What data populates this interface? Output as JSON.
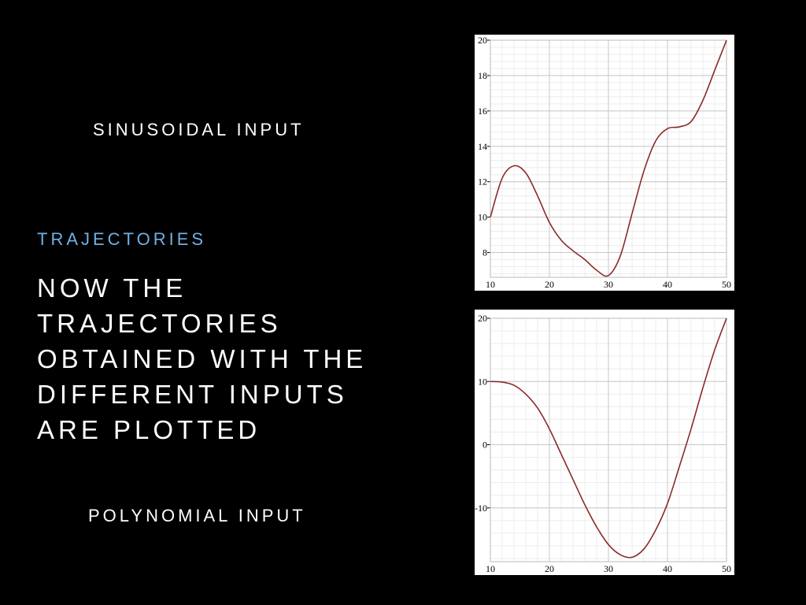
{
  "labels": {
    "sinusoidal": "SINUSOIDAL INPUT",
    "polynomial": "POLYNOMIAL INPUT"
  },
  "section": "TRAJECTORIES",
  "headline": [
    "NOW THE",
    "TRAJECTORIES",
    "OBTAINED WITH THE",
    "DIFFERENT INPUTS",
    "ARE PLOTTED"
  ],
  "colors": {
    "background": "#000000",
    "accent": "#6fb0e6",
    "curve": "#8b2a2a",
    "grid": "#cccccc"
  },
  "chart_data": [
    {
      "type": "line",
      "xlim": [
        10,
        50
      ],
      "ylim": [
        6.6,
        20
      ],
      "xticks": [
        10,
        20,
        30,
        40,
        50
      ],
      "yticks": [
        8,
        10,
        12,
        14,
        16,
        18,
        20
      ],
      "grid": true,
      "series": [
        {
          "x": [
            10,
            12,
            14,
            16,
            18,
            20,
            22,
            24,
            26,
            28,
            30,
            32,
            34,
            36,
            38,
            40,
            42,
            44,
            46,
            48,
            50
          ],
          "y": [
            10,
            12.2,
            12.9,
            12.5,
            11.2,
            9.7,
            8.7,
            8.1,
            7.6,
            7,
            6.7,
            7.8,
            10.2,
            12.6,
            14.3,
            15,
            15.1,
            15.4,
            16.6,
            18.3,
            20
          ]
        }
      ]
    },
    {
      "type": "line",
      "xlim": [
        10,
        50
      ],
      "ylim": [
        -18.5,
        20
      ],
      "xticks": [
        10,
        20,
        30,
        40,
        50
      ],
      "yticks": [
        -10,
        0,
        10,
        20
      ],
      "grid": true,
      "series": [
        {
          "x": [
            10,
            12,
            14,
            16,
            18,
            20,
            22,
            24,
            26,
            28,
            30,
            32,
            34,
            36,
            38,
            40,
            42,
            44,
            46,
            48,
            50
          ],
          "y": [
            10,
            9.9,
            9.4,
            8,
            5.8,
            2.5,
            -1.5,
            -5.5,
            -9.5,
            -13,
            -15.8,
            -17.4,
            -17.8,
            -16.5,
            -13.5,
            -9.3,
            -3.5,
            2.5,
            9,
            15,
            20
          ]
        }
      ]
    }
  ]
}
